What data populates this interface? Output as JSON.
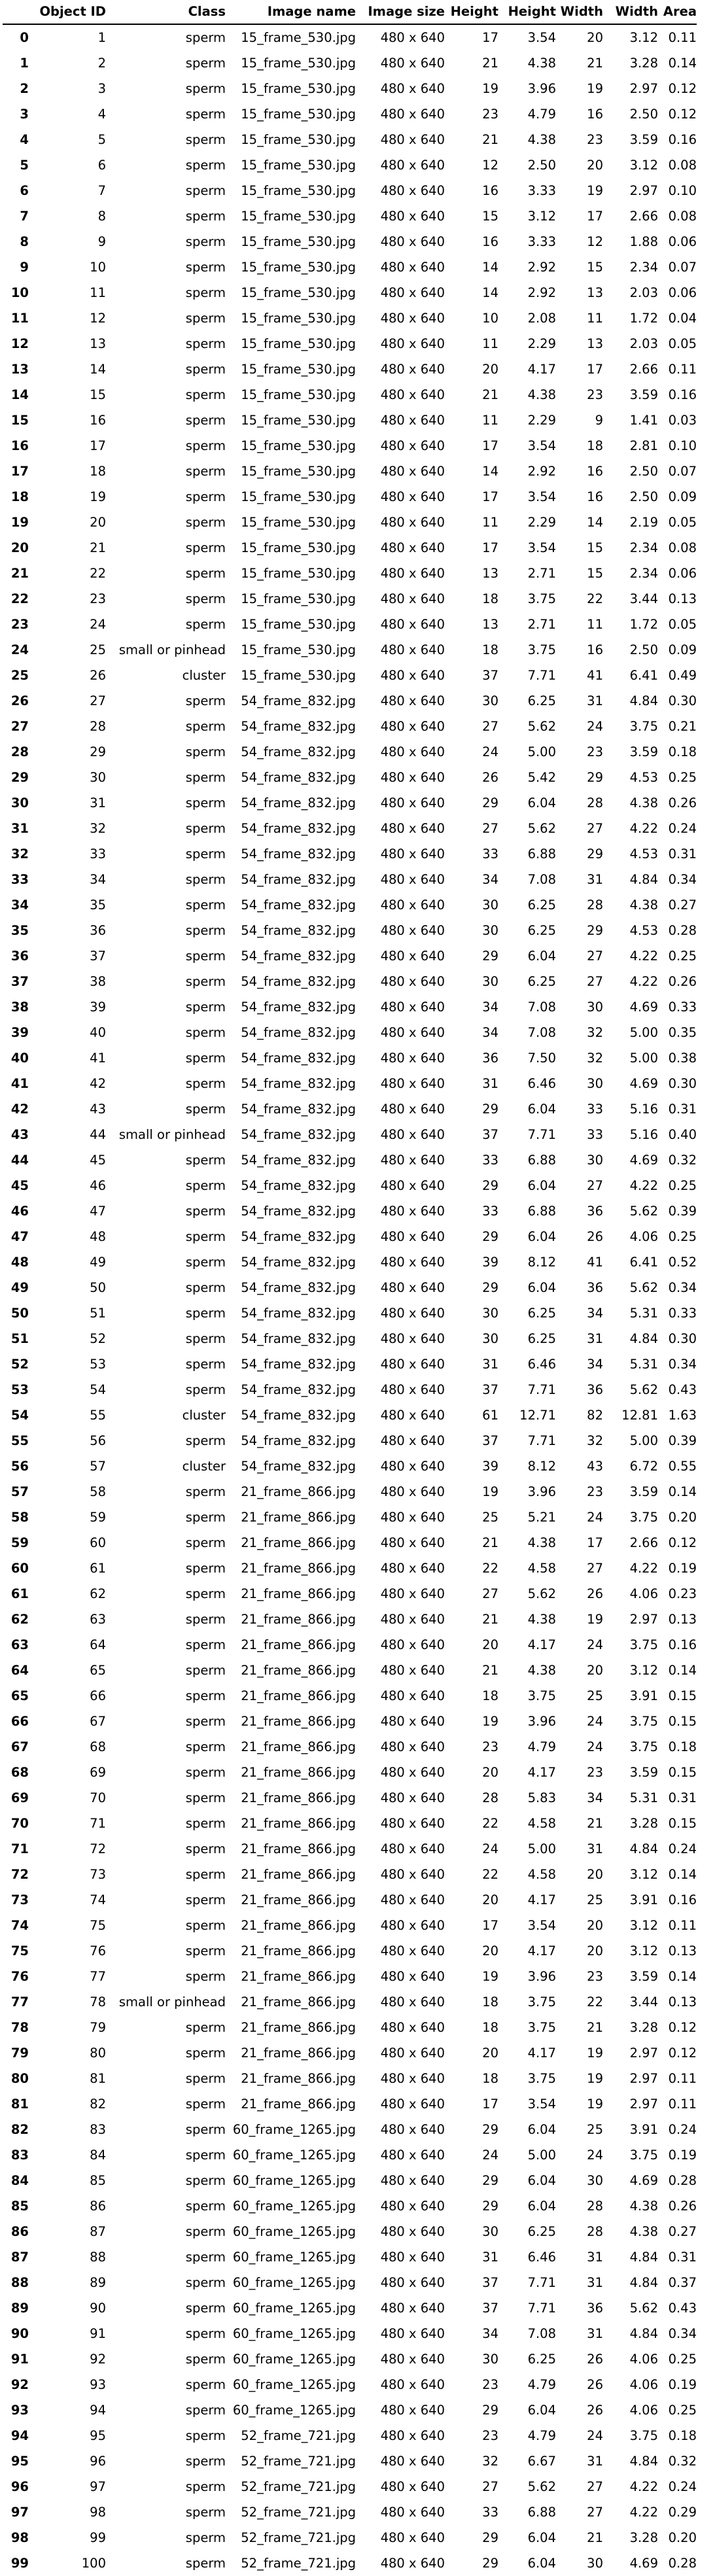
{
  "table": {
    "columns": [
      "",
      "Object ID",
      "Class",
      "Image name",
      "Image size",
      "Height",
      "Height",
      "Width",
      "Width",
      "Area"
    ],
    "rows": [
      [
        "0",
        "1",
        "sperm",
        "15_frame_530.jpg",
        "480 x 640",
        "17",
        "3.54",
        "20",
        "3.12",
        "0.11"
      ],
      [
        "1",
        "2",
        "sperm",
        "15_frame_530.jpg",
        "480 x 640",
        "21",
        "4.38",
        "21",
        "3.28",
        "0.14"
      ],
      [
        "2",
        "3",
        "sperm",
        "15_frame_530.jpg",
        "480 x 640",
        "19",
        "3.96",
        "19",
        "2.97",
        "0.12"
      ],
      [
        "3",
        "4",
        "sperm",
        "15_frame_530.jpg",
        "480 x 640",
        "23",
        "4.79",
        "16",
        "2.50",
        "0.12"
      ],
      [
        "4",
        "5",
        "sperm",
        "15_frame_530.jpg",
        "480 x 640",
        "21",
        "4.38",
        "23",
        "3.59",
        "0.16"
      ],
      [
        "5",
        "6",
        "sperm",
        "15_frame_530.jpg",
        "480 x 640",
        "12",
        "2.50",
        "20",
        "3.12",
        "0.08"
      ],
      [
        "6",
        "7",
        "sperm",
        "15_frame_530.jpg",
        "480 x 640",
        "16",
        "3.33",
        "19",
        "2.97",
        "0.10"
      ],
      [
        "7",
        "8",
        "sperm",
        "15_frame_530.jpg",
        "480 x 640",
        "15",
        "3.12",
        "17",
        "2.66",
        "0.08"
      ],
      [
        "8",
        "9",
        "sperm",
        "15_frame_530.jpg",
        "480 x 640",
        "16",
        "3.33",
        "12",
        "1.88",
        "0.06"
      ],
      [
        "9",
        "10",
        "sperm",
        "15_frame_530.jpg",
        "480 x 640",
        "14",
        "2.92",
        "15",
        "2.34",
        "0.07"
      ],
      [
        "10",
        "11",
        "sperm",
        "15_frame_530.jpg",
        "480 x 640",
        "14",
        "2.92",
        "13",
        "2.03",
        "0.06"
      ],
      [
        "11",
        "12",
        "sperm",
        "15_frame_530.jpg",
        "480 x 640",
        "10",
        "2.08",
        "11",
        "1.72",
        "0.04"
      ],
      [
        "12",
        "13",
        "sperm",
        "15_frame_530.jpg",
        "480 x 640",
        "11",
        "2.29",
        "13",
        "2.03",
        "0.05"
      ],
      [
        "13",
        "14",
        "sperm",
        "15_frame_530.jpg",
        "480 x 640",
        "20",
        "4.17",
        "17",
        "2.66",
        "0.11"
      ],
      [
        "14",
        "15",
        "sperm",
        "15_frame_530.jpg",
        "480 x 640",
        "21",
        "4.38",
        "23",
        "3.59",
        "0.16"
      ],
      [
        "15",
        "16",
        "sperm",
        "15_frame_530.jpg",
        "480 x 640",
        "11",
        "2.29",
        "9",
        "1.41",
        "0.03"
      ],
      [
        "16",
        "17",
        "sperm",
        "15_frame_530.jpg",
        "480 x 640",
        "17",
        "3.54",
        "18",
        "2.81",
        "0.10"
      ],
      [
        "17",
        "18",
        "sperm",
        "15_frame_530.jpg",
        "480 x 640",
        "14",
        "2.92",
        "16",
        "2.50",
        "0.07"
      ],
      [
        "18",
        "19",
        "sperm",
        "15_frame_530.jpg",
        "480 x 640",
        "17",
        "3.54",
        "16",
        "2.50",
        "0.09"
      ],
      [
        "19",
        "20",
        "sperm",
        "15_frame_530.jpg",
        "480 x 640",
        "11",
        "2.29",
        "14",
        "2.19",
        "0.05"
      ],
      [
        "20",
        "21",
        "sperm",
        "15_frame_530.jpg",
        "480 x 640",
        "17",
        "3.54",
        "15",
        "2.34",
        "0.08"
      ],
      [
        "21",
        "22",
        "sperm",
        "15_frame_530.jpg",
        "480 x 640",
        "13",
        "2.71",
        "15",
        "2.34",
        "0.06"
      ],
      [
        "22",
        "23",
        "sperm",
        "15_frame_530.jpg",
        "480 x 640",
        "18",
        "3.75",
        "22",
        "3.44",
        "0.13"
      ],
      [
        "23",
        "24",
        "sperm",
        "15_frame_530.jpg",
        "480 x 640",
        "13",
        "2.71",
        "11",
        "1.72",
        "0.05"
      ],
      [
        "24",
        "25",
        "small or pinhead",
        "15_frame_530.jpg",
        "480 x 640",
        "18",
        "3.75",
        "16",
        "2.50",
        "0.09"
      ],
      [
        "25",
        "26",
        "cluster",
        "15_frame_530.jpg",
        "480 x 640",
        "37",
        "7.71",
        "41",
        "6.41",
        "0.49"
      ],
      [
        "26",
        "27",
        "sperm",
        "54_frame_832.jpg",
        "480 x 640",
        "30",
        "6.25",
        "31",
        "4.84",
        "0.30"
      ],
      [
        "27",
        "28",
        "sperm",
        "54_frame_832.jpg",
        "480 x 640",
        "27",
        "5.62",
        "24",
        "3.75",
        "0.21"
      ],
      [
        "28",
        "29",
        "sperm",
        "54_frame_832.jpg",
        "480 x 640",
        "24",
        "5.00",
        "23",
        "3.59",
        "0.18"
      ],
      [
        "29",
        "30",
        "sperm",
        "54_frame_832.jpg",
        "480 x 640",
        "26",
        "5.42",
        "29",
        "4.53",
        "0.25"
      ],
      [
        "30",
        "31",
        "sperm",
        "54_frame_832.jpg",
        "480 x 640",
        "29",
        "6.04",
        "28",
        "4.38",
        "0.26"
      ],
      [
        "31",
        "32",
        "sperm",
        "54_frame_832.jpg",
        "480 x 640",
        "27",
        "5.62",
        "27",
        "4.22",
        "0.24"
      ],
      [
        "32",
        "33",
        "sperm",
        "54_frame_832.jpg",
        "480 x 640",
        "33",
        "6.88",
        "29",
        "4.53",
        "0.31"
      ],
      [
        "33",
        "34",
        "sperm",
        "54_frame_832.jpg",
        "480 x 640",
        "34",
        "7.08",
        "31",
        "4.84",
        "0.34"
      ],
      [
        "34",
        "35",
        "sperm",
        "54_frame_832.jpg",
        "480 x 640",
        "30",
        "6.25",
        "28",
        "4.38",
        "0.27"
      ],
      [
        "35",
        "36",
        "sperm",
        "54_frame_832.jpg",
        "480 x 640",
        "30",
        "6.25",
        "29",
        "4.53",
        "0.28"
      ],
      [
        "36",
        "37",
        "sperm",
        "54_frame_832.jpg",
        "480 x 640",
        "29",
        "6.04",
        "27",
        "4.22",
        "0.25"
      ],
      [
        "37",
        "38",
        "sperm",
        "54_frame_832.jpg",
        "480 x 640",
        "30",
        "6.25",
        "27",
        "4.22",
        "0.26"
      ],
      [
        "38",
        "39",
        "sperm",
        "54_frame_832.jpg",
        "480 x 640",
        "34",
        "7.08",
        "30",
        "4.69",
        "0.33"
      ],
      [
        "39",
        "40",
        "sperm",
        "54_frame_832.jpg",
        "480 x 640",
        "34",
        "7.08",
        "32",
        "5.00",
        "0.35"
      ],
      [
        "40",
        "41",
        "sperm",
        "54_frame_832.jpg",
        "480 x 640",
        "36",
        "7.50",
        "32",
        "5.00",
        "0.38"
      ],
      [
        "41",
        "42",
        "sperm",
        "54_frame_832.jpg",
        "480 x 640",
        "31",
        "6.46",
        "30",
        "4.69",
        "0.30"
      ],
      [
        "42",
        "43",
        "sperm",
        "54_frame_832.jpg",
        "480 x 640",
        "29",
        "6.04",
        "33",
        "5.16",
        "0.31"
      ],
      [
        "43",
        "44",
        "small or pinhead",
        "54_frame_832.jpg",
        "480 x 640",
        "37",
        "7.71",
        "33",
        "5.16",
        "0.40"
      ],
      [
        "44",
        "45",
        "sperm",
        "54_frame_832.jpg",
        "480 x 640",
        "33",
        "6.88",
        "30",
        "4.69",
        "0.32"
      ],
      [
        "45",
        "46",
        "sperm",
        "54_frame_832.jpg",
        "480 x 640",
        "29",
        "6.04",
        "27",
        "4.22",
        "0.25"
      ],
      [
        "46",
        "47",
        "sperm",
        "54_frame_832.jpg",
        "480 x 640",
        "33",
        "6.88",
        "36",
        "5.62",
        "0.39"
      ],
      [
        "47",
        "48",
        "sperm",
        "54_frame_832.jpg",
        "480 x 640",
        "29",
        "6.04",
        "26",
        "4.06",
        "0.25"
      ],
      [
        "48",
        "49",
        "sperm",
        "54_frame_832.jpg",
        "480 x 640",
        "39",
        "8.12",
        "41",
        "6.41",
        "0.52"
      ],
      [
        "49",
        "50",
        "sperm",
        "54_frame_832.jpg",
        "480 x 640",
        "29",
        "6.04",
        "36",
        "5.62",
        "0.34"
      ],
      [
        "50",
        "51",
        "sperm",
        "54_frame_832.jpg",
        "480 x 640",
        "30",
        "6.25",
        "34",
        "5.31",
        "0.33"
      ],
      [
        "51",
        "52",
        "sperm",
        "54_frame_832.jpg",
        "480 x 640",
        "30",
        "6.25",
        "31",
        "4.84",
        "0.30"
      ],
      [
        "52",
        "53",
        "sperm",
        "54_frame_832.jpg",
        "480 x 640",
        "31",
        "6.46",
        "34",
        "5.31",
        "0.34"
      ],
      [
        "53",
        "54",
        "sperm",
        "54_frame_832.jpg",
        "480 x 640",
        "37",
        "7.71",
        "36",
        "5.62",
        "0.43"
      ],
      [
        "54",
        "55",
        "cluster",
        "54_frame_832.jpg",
        "480 x 640",
        "61",
        "12.71",
        "82",
        "12.81",
        "1.63"
      ],
      [
        "55",
        "56",
        "sperm",
        "54_frame_832.jpg",
        "480 x 640",
        "37",
        "7.71",
        "32",
        "5.00",
        "0.39"
      ],
      [
        "56",
        "57",
        "cluster",
        "54_frame_832.jpg",
        "480 x 640",
        "39",
        "8.12",
        "43",
        "6.72",
        "0.55"
      ],
      [
        "57",
        "58",
        "sperm",
        "21_frame_866.jpg",
        "480 x 640",
        "19",
        "3.96",
        "23",
        "3.59",
        "0.14"
      ],
      [
        "58",
        "59",
        "sperm",
        "21_frame_866.jpg",
        "480 x 640",
        "25",
        "5.21",
        "24",
        "3.75",
        "0.20"
      ],
      [
        "59",
        "60",
        "sperm",
        "21_frame_866.jpg",
        "480 x 640",
        "21",
        "4.38",
        "17",
        "2.66",
        "0.12"
      ],
      [
        "60",
        "61",
        "sperm",
        "21_frame_866.jpg",
        "480 x 640",
        "22",
        "4.58",
        "27",
        "4.22",
        "0.19"
      ],
      [
        "61",
        "62",
        "sperm",
        "21_frame_866.jpg",
        "480 x 640",
        "27",
        "5.62",
        "26",
        "4.06",
        "0.23"
      ],
      [
        "62",
        "63",
        "sperm",
        "21_frame_866.jpg",
        "480 x 640",
        "21",
        "4.38",
        "19",
        "2.97",
        "0.13"
      ],
      [
        "63",
        "64",
        "sperm",
        "21_frame_866.jpg",
        "480 x 640",
        "20",
        "4.17",
        "24",
        "3.75",
        "0.16"
      ],
      [
        "64",
        "65",
        "sperm",
        "21_frame_866.jpg",
        "480 x 640",
        "21",
        "4.38",
        "20",
        "3.12",
        "0.14"
      ],
      [
        "65",
        "66",
        "sperm",
        "21_frame_866.jpg",
        "480 x 640",
        "18",
        "3.75",
        "25",
        "3.91",
        "0.15"
      ],
      [
        "66",
        "67",
        "sperm",
        "21_frame_866.jpg",
        "480 x 640",
        "19",
        "3.96",
        "24",
        "3.75",
        "0.15"
      ],
      [
        "67",
        "68",
        "sperm",
        "21_frame_866.jpg",
        "480 x 640",
        "23",
        "4.79",
        "24",
        "3.75",
        "0.18"
      ],
      [
        "68",
        "69",
        "sperm",
        "21_frame_866.jpg",
        "480 x 640",
        "20",
        "4.17",
        "23",
        "3.59",
        "0.15"
      ],
      [
        "69",
        "70",
        "sperm",
        "21_frame_866.jpg",
        "480 x 640",
        "28",
        "5.83",
        "34",
        "5.31",
        "0.31"
      ],
      [
        "70",
        "71",
        "sperm",
        "21_frame_866.jpg",
        "480 x 640",
        "22",
        "4.58",
        "21",
        "3.28",
        "0.15"
      ],
      [
        "71",
        "72",
        "sperm",
        "21_frame_866.jpg",
        "480 x 640",
        "24",
        "5.00",
        "31",
        "4.84",
        "0.24"
      ],
      [
        "72",
        "73",
        "sperm",
        "21_frame_866.jpg",
        "480 x 640",
        "22",
        "4.58",
        "20",
        "3.12",
        "0.14"
      ],
      [
        "73",
        "74",
        "sperm",
        "21_frame_866.jpg",
        "480 x 640",
        "20",
        "4.17",
        "25",
        "3.91",
        "0.16"
      ],
      [
        "74",
        "75",
        "sperm",
        "21_frame_866.jpg",
        "480 x 640",
        "17",
        "3.54",
        "20",
        "3.12",
        "0.11"
      ],
      [
        "75",
        "76",
        "sperm",
        "21_frame_866.jpg",
        "480 x 640",
        "20",
        "4.17",
        "20",
        "3.12",
        "0.13"
      ],
      [
        "76",
        "77",
        "sperm",
        "21_frame_866.jpg",
        "480 x 640",
        "19",
        "3.96",
        "23",
        "3.59",
        "0.14"
      ],
      [
        "77",
        "78",
        "small or pinhead",
        "21_frame_866.jpg",
        "480 x 640",
        "18",
        "3.75",
        "22",
        "3.44",
        "0.13"
      ],
      [
        "78",
        "79",
        "sperm",
        "21_frame_866.jpg",
        "480 x 640",
        "18",
        "3.75",
        "21",
        "3.28",
        "0.12"
      ],
      [
        "79",
        "80",
        "sperm",
        "21_frame_866.jpg",
        "480 x 640",
        "20",
        "4.17",
        "19",
        "2.97",
        "0.12"
      ],
      [
        "80",
        "81",
        "sperm",
        "21_frame_866.jpg",
        "480 x 640",
        "18",
        "3.75",
        "19",
        "2.97",
        "0.11"
      ],
      [
        "81",
        "82",
        "sperm",
        "21_frame_866.jpg",
        "480 x 640",
        "17",
        "3.54",
        "19",
        "2.97",
        "0.11"
      ],
      [
        "82",
        "83",
        "sperm",
        "60_frame_1265.jpg",
        "480 x 640",
        "29",
        "6.04",
        "25",
        "3.91",
        "0.24"
      ],
      [
        "83",
        "84",
        "sperm",
        "60_frame_1265.jpg",
        "480 x 640",
        "24",
        "5.00",
        "24",
        "3.75",
        "0.19"
      ],
      [
        "84",
        "85",
        "sperm",
        "60_frame_1265.jpg",
        "480 x 640",
        "29",
        "6.04",
        "30",
        "4.69",
        "0.28"
      ],
      [
        "85",
        "86",
        "sperm",
        "60_frame_1265.jpg",
        "480 x 640",
        "29",
        "6.04",
        "28",
        "4.38",
        "0.26"
      ],
      [
        "86",
        "87",
        "sperm",
        "60_frame_1265.jpg",
        "480 x 640",
        "30",
        "6.25",
        "28",
        "4.38",
        "0.27"
      ],
      [
        "87",
        "88",
        "sperm",
        "60_frame_1265.jpg",
        "480 x 640",
        "31",
        "6.46",
        "31",
        "4.84",
        "0.31"
      ],
      [
        "88",
        "89",
        "sperm",
        "60_frame_1265.jpg",
        "480 x 640",
        "37",
        "7.71",
        "31",
        "4.84",
        "0.37"
      ],
      [
        "89",
        "90",
        "sperm",
        "60_frame_1265.jpg",
        "480 x 640",
        "37",
        "7.71",
        "36",
        "5.62",
        "0.43"
      ],
      [
        "90",
        "91",
        "sperm",
        "60_frame_1265.jpg",
        "480 x 640",
        "34",
        "7.08",
        "31",
        "4.84",
        "0.34"
      ],
      [
        "91",
        "92",
        "sperm",
        "60_frame_1265.jpg",
        "480 x 640",
        "30",
        "6.25",
        "26",
        "4.06",
        "0.25"
      ],
      [
        "92",
        "93",
        "sperm",
        "60_frame_1265.jpg",
        "480 x 640",
        "23",
        "4.79",
        "26",
        "4.06",
        "0.19"
      ],
      [
        "93",
        "94",
        "sperm",
        "60_frame_1265.jpg",
        "480 x 640",
        "29",
        "6.04",
        "26",
        "4.06",
        "0.25"
      ],
      [
        "94",
        "95",
        "sperm",
        "52_frame_721.jpg",
        "480 x 640",
        "23",
        "4.79",
        "24",
        "3.75",
        "0.18"
      ],
      [
        "95",
        "96",
        "sperm",
        "52_frame_721.jpg",
        "480 x 640",
        "32",
        "6.67",
        "31",
        "4.84",
        "0.32"
      ],
      [
        "96",
        "97",
        "sperm",
        "52_frame_721.jpg",
        "480 x 640",
        "27",
        "5.62",
        "27",
        "4.22",
        "0.24"
      ],
      [
        "97",
        "98",
        "sperm",
        "52_frame_721.jpg",
        "480 x 640",
        "33",
        "6.88",
        "27",
        "4.22",
        "0.29"
      ],
      [
        "98",
        "99",
        "sperm",
        "52_frame_721.jpg",
        "480 x 640",
        "29",
        "6.04",
        "21",
        "3.28",
        "0.20"
      ],
      [
        "99",
        "100",
        "sperm",
        "52_frame_721.jpg",
        "480 x 640",
        "29",
        "6.04",
        "30",
        "4.69",
        "0.28"
      ]
    ]
  }
}
